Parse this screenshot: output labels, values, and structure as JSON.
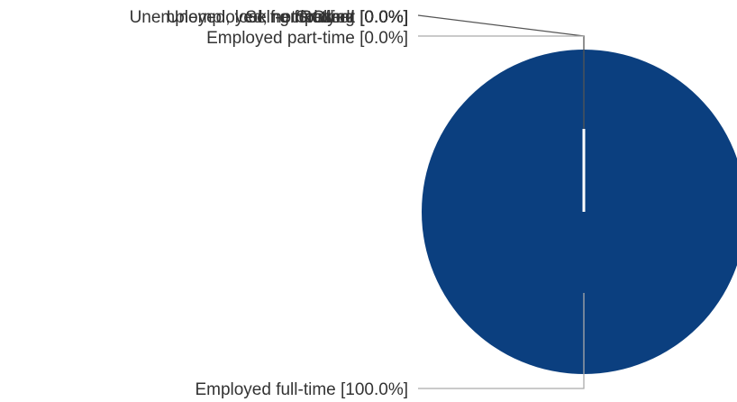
{
  "chart_data": {
    "type": "pie",
    "title": "",
    "slices": [
      {
        "label": "Employed full-time [100.0%]",
        "name": "Employed full-time",
        "value": 100.0,
        "color": "#0b3f7f"
      },
      {
        "label": "Employed part-time [0.0%]",
        "name": "Employed part-time",
        "value": 0.0,
        "color": "#ffffff"
      },
      {
        "label": "Unemployed, looking for work [0.0%]",
        "name": "Unemployed, looking for work",
        "value": 0.0,
        "color": "#ffffff"
      },
      {
        "label": "Unemployed, not looking [0.0%]",
        "name": "Unemployed, not looking",
        "value": 0.0,
        "color": "#ffffff"
      },
      {
        "label": "Self-employed [0.0%]",
        "name": "Self-employed",
        "value": 0.0,
        "color": "#ffffff"
      },
      {
        "label": "Student [0.0%]",
        "name": "Student",
        "value": 0.0,
        "color": "#ffffff"
      },
      {
        "label": "Retired [0.0%]",
        "name": "Retired",
        "value": 0.0,
        "color": "#ffffff"
      },
      {
        "label": "Other [0.0%]",
        "name": "Other",
        "value": 0.0,
        "color": "#ffffff"
      }
    ],
    "legend": "none"
  }
}
